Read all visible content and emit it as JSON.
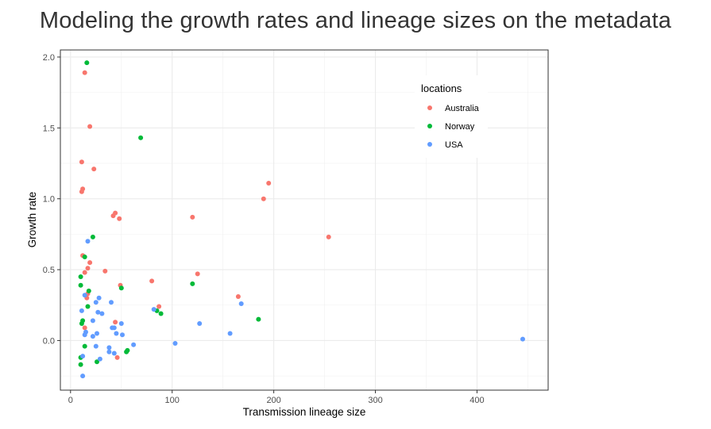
{
  "page_title": "Modeling the growth rates and lineage sizes on the metadata",
  "chart_data": {
    "type": "scatter",
    "title": "Modeling the growth rates and lineage sizes on the metadata",
    "xlabel": "Transmission lineage size",
    "ylabel": "Growth rate",
    "xlim": [
      -10,
      470
    ],
    "ylim": [
      -0.35,
      2.05
    ],
    "x_ticks": [
      0,
      100,
      200,
      300,
      400
    ],
    "y_ticks": [
      0.0,
      0.5,
      1.0,
      1.5,
      2.0
    ],
    "x_tick_labels": [
      "0",
      "100",
      "200",
      "300",
      "400"
    ],
    "y_tick_labels": [
      "0.0",
      "0.5",
      "1.0",
      "1.5",
      "2.0"
    ],
    "grid": true,
    "legend": {
      "title": "locations",
      "position": "top-right"
    },
    "series": [
      {
        "name": "Australia",
        "color": "#F8766D",
        "points": [
          [
            14,
            1.89
          ],
          [
            19,
            1.51
          ],
          [
            11,
            1.26
          ],
          [
            23,
            1.21
          ],
          [
            12,
            1.07
          ],
          [
            11,
            1.05
          ],
          [
            42,
            0.88
          ],
          [
            44,
            0.9
          ],
          [
            48,
            0.86
          ],
          [
            120,
            0.87
          ],
          [
            190,
            1.0
          ],
          [
            195,
            1.11
          ],
          [
            254,
            0.73
          ],
          [
            12,
            0.6
          ],
          [
            19,
            0.55
          ],
          [
            17,
            0.51
          ],
          [
            14,
            0.48
          ],
          [
            34,
            0.49
          ],
          [
            49,
            0.39
          ],
          [
            80,
            0.42
          ],
          [
            125,
            0.47
          ],
          [
            165,
            0.31
          ],
          [
            87,
            0.24
          ],
          [
            17,
            0.33
          ],
          [
            16,
            0.3
          ],
          [
            14,
            0.09
          ],
          [
            44,
            0.13
          ],
          [
            46,
            -0.12
          ]
        ]
      },
      {
        "name": "Norway",
        "color": "#00BA38",
        "points": [
          [
            16,
            1.96
          ],
          [
            69,
            1.43
          ],
          [
            22,
            0.73
          ],
          [
            14,
            0.59
          ],
          [
            10,
            0.45
          ],
          [
            10,
            0.39
          ],
          [
            18,
            0.35
          ],
          [
            50,
            0.37
          ],
          [
            120,
            0.4
          ],
          [
            17,
            0.24
          ],
          [
            85,
            0.21
          ],
          [
            89,
            0.19
          ],
          [
            185,
            0.15
          ],
          [
            12,
            0.14
          ],
          [
            11,
            0.12
          ],
          [
            14,
            -0.04
          ],
          [
            56,
            -0.07
          ],
          [
            55,
            -0.08
          ],
          [
            10,
            -0.12
          ],
          [
            10,
            -0.17
          ],
          [
            26,
            -0.15
          ]
        ]
      },
      {
        "name": "USA",
        "color": "#619CFF",
        "points": [
          [
            17,
            0.7
          ],
          [
            14,
            0.32
          ],
          [
            28,
            0.3
          ],
          [
            40,
            0.27
          ],
          [
            25,
            0.27
          ],
          [
            82,
            0.22
          ],
          [
            168,
            0.26
          ],
          [
            11,
            0.21
          ],
          [
            27,
            0.2
          ],
          [
            31,
            0.19
          ],
          [
            22,
            0.14
          ],
          [
            50,
            0.12
          ],
          [
            127,
            0.12
          ],
          [
            41,
            0.09
          ],
          [
            43,
            0.09
          ],
          [
            15,
            0.06
          ],
          [
            14,
            0.04
          ],
          [
            22,
            0.03
          ],
          [
            26,
            0.05
          ],
          [
            45,
            0.05
          ],
          [
            51,
            0.04
          ],
          [
            157,
            0.05
          ],
          [
            445,
            0.01
          ],
          [
            103,
            -0.02
          ],
          [
            62,
            -0.03
          ],
          [
            25,
            -0.04
          ],
          [
            38,
            -0.05
          ],
          [
            38,
            -0.08
          ],
          [
            43,
            -0.09
          ],
          [
            12,
            -0.11
          ],
          [
            29,
            -0.13
          ],
          [
            12,
            -0.25
          ]
        ]
      }
    ]
  }
}
